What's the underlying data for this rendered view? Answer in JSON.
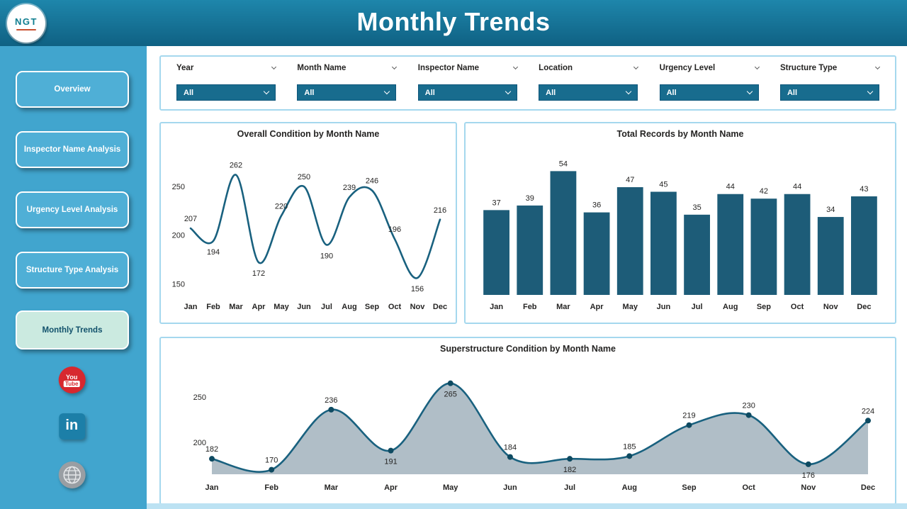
{
  "header": {
    "title": "Monthly Trends",
    "logo_text": "NGT"
  },
  "sidebar": {
    "items": [
      {
        "label": "Overview",
        "active": false
      },
      {
        "label": "Inspector Name Analysis",
        "active": false
      },
      {
        "label": "Urgency Level Analysis",
        "active": false
      },
      {
        "label": "Structure Type Analysis",
        "active": false
      },
      {
        "label": "Monthly Trends",
        "active": true
      }
    ],
    "social": [
      {
        "name": "youtube",
        "line1": "You",
        "line2": "Tube"
      },
      {
        "name": "linkedin",
        "label": "in"
      },
      {
        "name": "website"
      }
    ]
  },
  "filters": [
    {
      "label": "Year",
      "value": "All"
    },
    {
      "label": "Month Name",
      "value": "All"
    },
    {
      "label": "Inspector Name",
      "value": "All"
    },
    {
      "label": "Location",
      "value": "All"
    },
    {
      "label": "Urgency Level",
      "value": "All"
    },
    {
      "label": "Structure Type",
      "value": "All"
    }
  ],
  "colors": {
    "header_teal": "#0F6183",
    "sidebar_blue": "#41A5CE",
    "active_item_bg": "#CBEAE0",
    "dropdown_bg": "#186C8E",
    "panel_border": "#A5D8EE",
    "bar_color": "#1D5C78",
    "line_color": "#19617F",
    "area_fill": "#ACBAC4"
  },
  "chart_data": [
    {
      "type": "line",
      "title": "Overall Condition by Month Name",
      "categories": [
        "Jan",
        "Feb",
        "Mar",
        "Apr",
        "May",
        "Jun",
        "Jul",
        "Aug",
        "Sep",
        "Oct",
        "Nov",
        "Dec"
      ],
      "values": [
        207,
        194,
        262,
        172,
        220,
        250,
        190,
        239,
        246,
        196,
        156,
        216
      ],
      "yticks": [
        150,
        200,
        250
      ],
      "ylim": [
        140,
        280
      ],
      "label_pos": [
        "a",
        "b",
        "a",
        "b",
        "a",
        "a",
        "b",
        "a",
        "a",
        "a",
        "b",
        "a"
      ],
      "line_color": "#19617F",
      "xlabel": "",
      "ylabel": "",
      "legend": "none",
      "grid": false
    },
    {
      "type": "bar",
      "title": "Total Records by Month Name",
      "categories": [
        "Jan",
        "Feb",
        "Mar",
        "Apr",
        "May",
        "Jun",
        "Jul",
        "Aug",
        "Sep",
        "Oct",
        "Nov",
        "Dec"
      ],
      "values": [
        37,
        39,
        54,
        36,
        47,
        45,
        35,
        44,
        42,
        44,
        34,
        43
      ],
      "ylim": [
        0,
        60
      ],
      "bar_color": "#1D5C78",
      "xlabel": "",
      "ylabel": "",
      "legend": "none",
      "grid": false
    },
    {
      "type": "area",
      "title": "Superstructure Condition by Month Name",
      "categories": [
        "Jan",
        "Feb",
        "Mar",
        "Apr",
        "May",
        "Jun",
        "Jul",
        "Aug",
        "Sep",
        "Oct",
        "Nov",
        "Dec"
      ],
      "values": [
        182,
        170,
        236,
        191,
        265,
        184,
        182,
        185,
        219,
        230,
        176,
        224
      ],
      "yticks": [
        200,
        250
      ],
      "ylim": [
        165,
        285
      ],
      "label_pos": [
        "a",
        "a",
        "a",
        "b",
        "b",
        "a",
        "b",
        "a",
        "a",
        "a",
        "b",
        "a"
      ],
      "line_color": "#19617F",
      "area_fill": "#ACBAC4",
      "dot_color": "#0E4A61",
      "xlabel": "",
      "ylabel": "",
      "legend": "none",
      "grid": false
    }
  ]
}
